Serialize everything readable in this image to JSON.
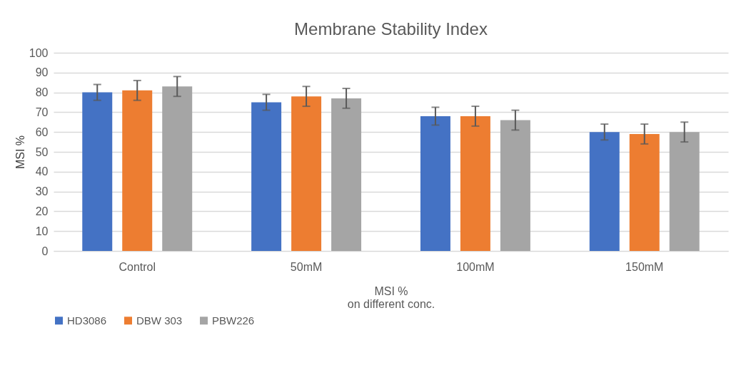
{
  "chart_data": {
    "type": "bar",
    "title": "Membrane Stability Index",
    "xlabel": "MSI %\non different conc.",
    "ylabel": "MSI %",
    "categories": [
      "Control",
      "50mM",
      "100mM",
      "150mM"
    ],
    "series": [
      {
        "name": "HD3086",
        "color": "#4472c4",
        "values": [
          80,
          75,
          68,
          60
        ],
        "errors": [
          4,
          4,
          4.5,
          4
        ]
      },
      {
        "name": "DBW 303",
        "color": "#ed7d31",
        "values": [
          81,
          78,
          68,
          59
        ],
        "errors": [
          5,
          5,
          5,
          5
        ]
      },
      {
        "name": "PBW226",
        "color": "#a5a5a5",
        "values": [
          83,
          77,
          66,
          60
        ],
        "errors": [
          5,
          5,
          5,
          5
        ]
      }
    ],
    "ylim": [
      0,
      100
    ],
    "yticks": [
      0,
      10,
      20,
      30,
      40,
      50,
      60,
      70,
      80,
      90,
      100
    ],
    "grid": "y",
    "legend": "bottom"
  }
}
